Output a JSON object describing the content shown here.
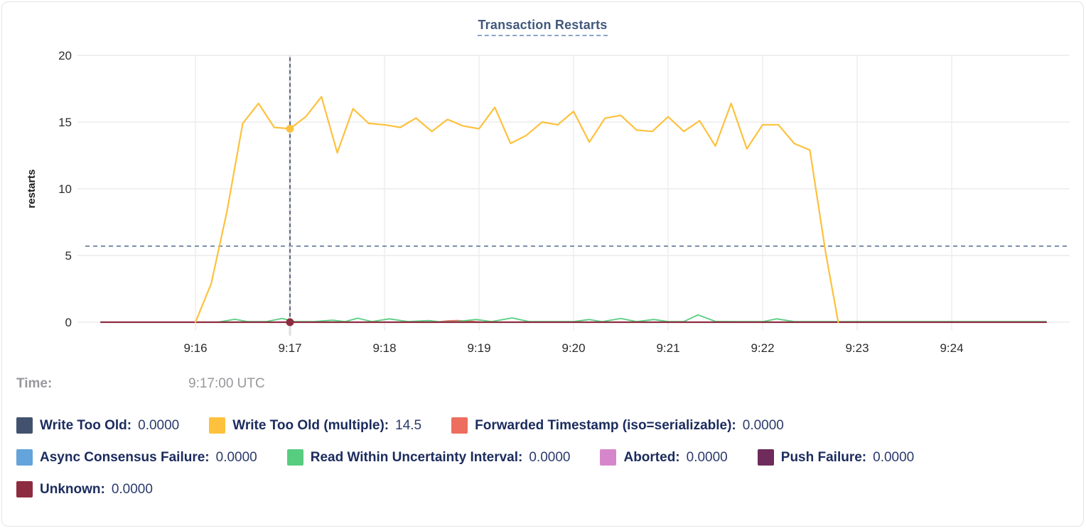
{
  "chart": {
    "title": "Transaction Restarts",
    "ylabel": "restarts"
  },
  "hover": {
    "time_label": "Time:",
    "time_value": "9:17:00 UTC"
  },
  "chart_data": {
    "type": "line",
    "title": "Transaction Restarts",
    "xlabel": "",
    "ylabel": "restarts",
    "ylim": [
      0,
      20
    ],
    "y_ticks": [
      0,
      5,
      10,
      15,
      20
    ],
    "x_tick_labels": [
      "9:16",
      "9:17",
      "9:18",
      "9:19",
      "9:20",
      "9:21",
      "9:22",
      "9:23",
      "9:24"
    ],
    "x_domain_seconds_from_916": [
      -60,
      540
    ],
    "grid": true,
    "legend_position": "bottom",
    "avg_line_value": 5.7,
    "hover": {
      "x_seconds": 60,
      "time": "9:17:00 UTC",
      "dots": [
        {
          "series": "Write Too Old (multiple)",
          "value": 14.5,
          "color": "#fdc13d"
        },
        {
          "series": "Unknown",
          "value": 0,
          "color": "#8d2c40"
        }
      ]
    },
    "series": [
      {
        "name": "Write Too Old",
        "color": "#42526e",
        "width": 1.6,
        "points": [
          [
            -60,
            0
          ],
          [
            540,
            0
          ]
        ]
      },
      {
        "name": "Async Consensus Failure",
        "color": "#63a4da",
        "width": 1.6,
        "points": [
          [
            -60,
            0
          ],
          [
            540,
            0
          ]
        ]
      },
      {
        "name": "Aborted",
        "color": "#d687cb",
        "width": 1.6,
        "points": [
          [
            -60,
            0
          ],
          [
            540,
            0
          ]
        ]
      },
      {
        "name": "Push Failure",
        "color": "#6e2b5b",
        "width": 1.6,
        "points": [
          [
            -60,
            0
          ],
          [
            540,
            0
          ]
        ]
      },
      {
        "name": "Forwarded Timestamp (iso=serializable)",
        "color": "#ed6d5e",
        "width": 1.8,
        "points": [
          [
            -60,
            0
          ],
          [
            152,
            0
          ],
          [
            160,
            0.1
          ],
          [
            166,
            0.13
          ],
          [
            174,
            0.07
          ],
          [
            183,
            0
          ],
          [
            540,
            0
          ]
        ]
      },
      {
        "name": "Read Within Uncertainty Interval",
        "color": "#57cd80",
        "width": 1.8,
        "points": [
          [
            15,
            0.02
          ],
          [
            25,
            0.22
          ],
          [
            33,
            0.05
          ],
          [
            45,
            0.05
          ],
          [
            55,
            0.28
          ],
          [
            63,
            0.05
          ],
          [
            75,
            0.05
          ],
          [
            87,
            0.15
          ],
          [
            95,
            0.05
          ],
          [
            103,
            0.3
          ],
          [
            112,
            0.05
          ],
          [
            123,
            0.25
          ],
          [
            135,
            0.05
          ],
          [
            148,
            0.12
          ],
          [
            155,
            0.03
          ],
          [
            165,
            0.03
          ],
          [
            178,
            0.2
          ],
          [
            188,
            0.05
          ],
          [
            201,
            0.32
          ],
          [
            212,
            0.04
          ],
          [
            225,
            0.04
          ],
          [
            240,
            0.04
          ],
          [
            250,
            0.2
          ],
          [
            258,
            0.04
          ],
          [
            270,
            0.28
          ],
          [
            280,
            0.04
          ],
          [
            291,
            0.2
          ],
          [
            300,
            0.04
          ],
          [
            310,
            0.05
          ],
          [
            319,
            0.55
          ],
          [
            330,
            0.06
          ],
          [
            345,
            0.04
          ],
          [
            360,
            0.04
          ],
          [
            369,
            0.25
          ],
          [
            380,
            0.05
          ],
          [
            420,
            0.04
          ],
          [
            480,
            0.04
          ],
          [
            540,
            0.04
          ]
        ]
      },
      {
        "name": "Unknown",
        "color": "#8d2c40",
        "width": 2.2,
        "points": [
          [
            -60,
            0
          ],
          [
            540,
            0
          ]
        ]
      },
      {
        "name": "Write Too Old (multiple)",
        "color": "#fdc13d",
        "width": 2.2,
        "points": [
          [
            0,
            0
          ],
          [
            10,
            2.9
          ],
          [
            20,
            8.3
          ],
          [
            30,
            14.9
          ],
          [
            40,
            16.4
          ],
          [
            50,
            14.6
          ],
          [
            60,
            14.5
          ],
          [
            70,
            15.4
          ],
          [
            80,
            16.9
          ],
          [
            90,
            12.7
          ],
          [
            100,
            16.0
          ],
          [
            110,
            14.9
          ],
          [
            120,
            14.8
          ],
          [
            130,
            14.6
          ],
          [
            140,
            15.3
          ],
          [
            150,
            14.3
          ],
          [
            160,
            15.2
          ],
          [
            170,
            14.7
          ],
          [
            180,
            14.5
          ],
          [
            190,
            16.1
          ],
          [
            200,
            13.4
          ],
          [
            210,
            14.0
          ],
          [
            220,
            15.0
          ],
          [
            230,
            14.8
          ],
          [
            240,
            15.8
          ],
          [
            250,
            13.5
          ],
          [
            260,
            15.3
          ],
          [
            270,
            15.5
          ],
          [
            280,
            14.4
          ],
          [
            290,
            14.3
          ],
          [
            300,
            15.4
          ],
          [
            310,
            14.3
          ],
          [
            320,
            15.1
          ],
          [
            330,
            13.2
          ],
          [
            340,
            16.4
          ],
          [
            350,
            13.0
          ],
          [
            360,
            14.8
          ],
          [
            370,
            14.8
          ],
          [
            380,
            13.4
          ],
          [
            390,
            12.9
          ],
          [
            400,
            5.2
          ],
          [
            408,
            0
          ]
        ]
      }
    ]
  },
  "legend": {
    "rows": [
      [
        {
          "label": "Write Too Old:",
          "value": "0.0000",
          "color": "#42526e"
        },
        {
          "label": "Write Too Old (multiple):",
          "value": "14.5",
          "color": "#fdc13d"
        },
        {
          "label": "Forwarded Timestamp (iso=serializable):",
          "value": "0.0000",
          "color": "#ed6d5e"
        }
      ],
      [
        {
          "label": "Async Consensus Failure:",
          "value": "0.0000",
          "color": "#63a4da"
        },
        {
          "label": "Read Within Uncertainty Interval:",
          "value": "0.0000",
          "color": "#57cd80"
        },
        {
          "label": "Aborted:",
          "value": "0.0000",
          "color": "#d687cb"
        },
        {
          "label": "Push Failure:",
          "value": "0.0000",
          "color": "#6e2b5b"
        }
      ],
      [
        {
          "label": "Unknown:",
          "value": "0.0000",
          "color": "#8d2c40"
        }
      ]
    ]
  }
}
